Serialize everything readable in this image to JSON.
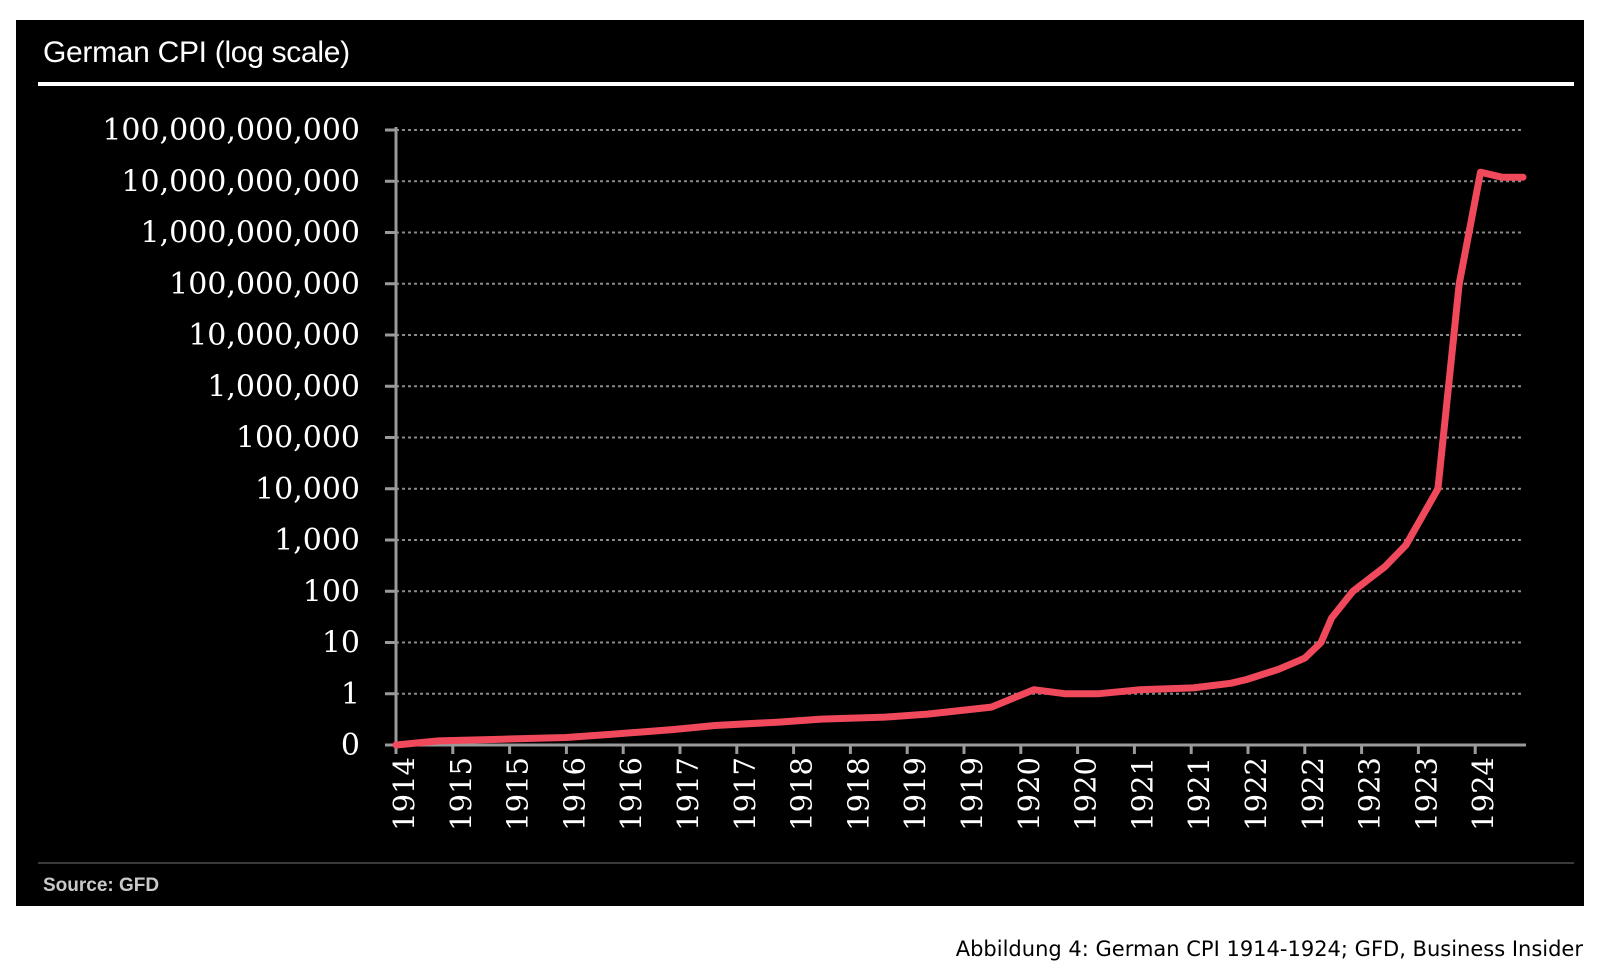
{
  "caption": "Abbildung 4: German CPI 1914-1924; GFD, Business Insider",
  "chart_data": {
    "type": "line",
    "title": "German CPI (log scale)",
    "source": "Source: GFD",
    "y_scale": "log",
    "grid": true,
    "colors": {
      "line": "#f0495b",
      "background": "#000000",
      "text": "#ffffff",
      "grid": "#8a8a8a"
    },
    "y_tick_labels": [
      "0",
      "1",
      "10",
      "100",
      "1,000",
      "10,000",
      "100,000",
      "1,000,000",
      "10,000,000",
      "100,000,000",
      "1,000,000,000",
      "10,000,000,000",
      "100,000,000,000"
    ],
    "x_tick_labels": [
      "1914",
      "1915",
      "1915",
      "1916",
      "1916",
      "1917",
      "1917",
      "1918",
      "1918",
      "1919",
      "1919",
      "1920",
      "1920",
      "1921",
      "1921",
      "1922",
      "1922",
      "1923",
      "1923",
      "1924"
    ],
    "series": [
      {
        "x": [
          1914.0,
          1914.4,
          1915.0,
          1915.6,
          1916.0,
          1916.6,
          1917.0,
          1917.6,
          1918.0,
          1918.6,
          1919.0,
          1919.6,
          1920.0,
          1920.3,
          1920.6,
          1921.0,
          1921.5,
          1921.85,
          1922.0,
          1922.3,
          1922.5,
          1922.55,
          1922.7,
          1922.8,
          1923.0,
          1923.3,
          1923.5,
          1923.8,
          1924.0,
          1924.2,
          1924.4,
          1924.6
        ],
        "y": [
          0.1,
          0.12,
          0.13,
          0.14,
          0.16,
          0.2,
          0.24,
          0.28,
          0.32,
          0.35,
          0.4,
          0.55,
          1.2,
          1.0,
          1.0,
          1.2,
          1.3,
          1.6,
          1.9,
          3.0,
          4.5,
          5.0,
          10,
          30,
          100,
          300,
          800,
          10000,
          100000000,
          15000000000,
          12000000000,
          12000000000
        ]
      }
    ]
  }
}
